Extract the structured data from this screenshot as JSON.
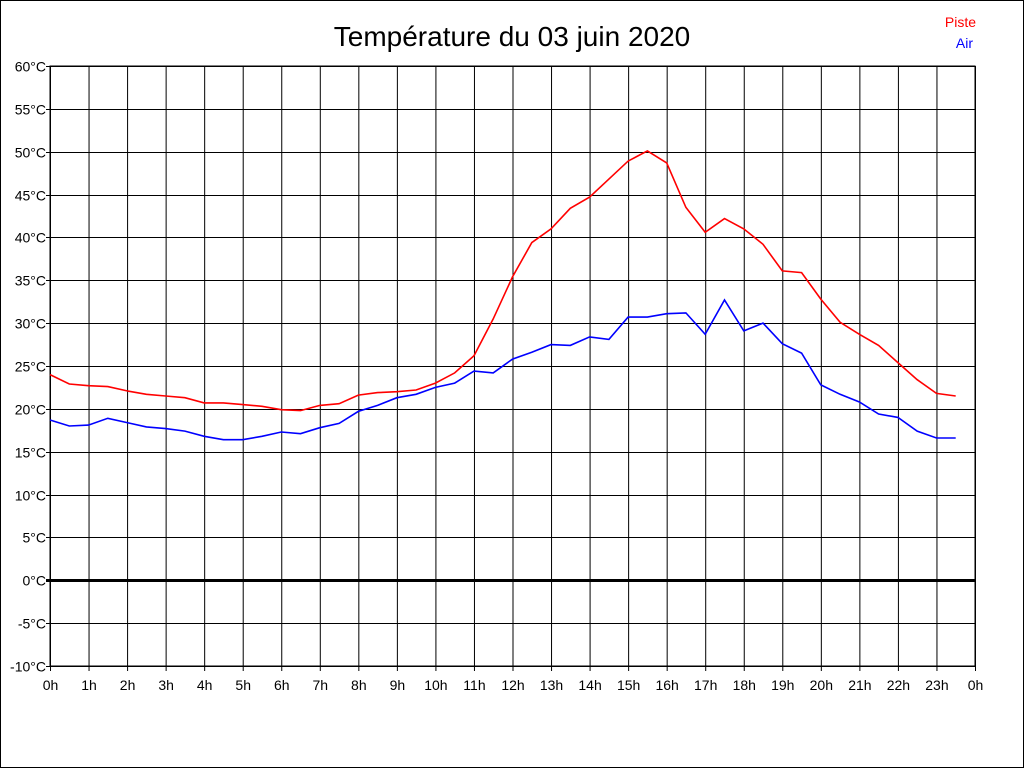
{
  "chart_data": {
    "type": "line",
    "title": "Température du 03 juin 2020",
    "xlabel": "",
    "ylabel": "",
    "x_tick_labels": [
      "0h",
      "1h",
      "2h",
      "3h",
      "4h",
      "5h",
      "6h",
      "7h",
      "8h",
      "9h",
      "10h",
      "11h",
      "12h",
      "13h",
      "14h",
      "15h",
      "16h",
      "17h",
      "18h",
      "19h",
      "20h",
      "21h",
      "22h",
      "23h",
      "0h"
    ],
    "y_tick_labels": [
      "60°C",
      "55°C",
      "50°C",
      "45°C",
      "40°C",
      "35°C",
      "30°C",
      "25°C",
      "20°C",
      "15°C",
      "10°C",
      "5°C",
      "0°C",
      "-5°C",
      "-10°C"
    ],
    "xlim": [
      0,
      24
    ],
    "ylim": [
      -10,
      60
    ],
    "grid": true,
    "legend_placement": "top-right",
    "x": [
      0,
      0.5,
      1,
      1.5,
      2,
      2.5,
      3,
      3.5,
      4,
      4.5,
      5,
      5.5,
      6,
      6.5,
      7,
      7.5,
      8,
      8.5,
      9,
      9.5,
      10,
      10.5,
      11,
      11.5,
      12,
      12.5,
      13,
      13.5,
      14,
      14.5,
      15,
      15.5,
      16,
      16.5,
      17,
      17.5,
      18,
      18.5,
      19,
      19.5,
      20,
      20.5,
      21,
      21.5,
      22,
      22.5,
      23,
      23.5
    ],
    "series": [
      {
        "name": "Piste",
        "color": "#ff0000",
        "values": [
          24.0,
          22.9,
          22.7,
          22.6,
          22.1,
          21.7,
          21.5,
          21.3,
          20.7,
          20.7,
          20.5,
          20.3,
          19.9,
          19.8,
          20.4,
          20.6,
          21.6,
          21.9,
          22.0,
          22.2,
          23.0,
          24.2,
          26.2,
          30.5,
          35.4,
          39.4,
          41.0,
          43.4,
          44.7,
          46.8,
          48.9,
          50.1,
          48.7,
          43.5,
          40.6,
          42.2,
          41.0,
          39.2,
          36.1,
          35.9,
          32.8,
          30.1,
          28.7,
          27.4,
          25.4,
          23.4,
          21.8,
          21.5
        ]
      },
      {
        "name": "Air",
        "color": "#0000ff",
        "values": [
          18.7,
          18.0,
          18.1,
          18.9,
          18.4,
          17.9,
          17.7,
          17.4,
          16.8,
          16.4,
          16.4,
          16.8,
          17.3,
          17.1,
          17.8,
          18.3,
          19.7,
          20.4,
          21.3,
          21.7,
          22.5,
          23.0,
          24.4,
          24.2,
          25.8,
          26.6,
          27.5,
          27.4,
          28.4,
          28.1,
          30.7,
          30.7,
          31.1,
          31.2,
          28.7,
          32.7,
          29.1,
          30.0,
          27.6,
          26.5,
          22.8,
          21.7,
          20.8,
          19.4,
          19.0,
          17.4,
          16.6,
          16.6
        ]
      }
    ]
  }
}
